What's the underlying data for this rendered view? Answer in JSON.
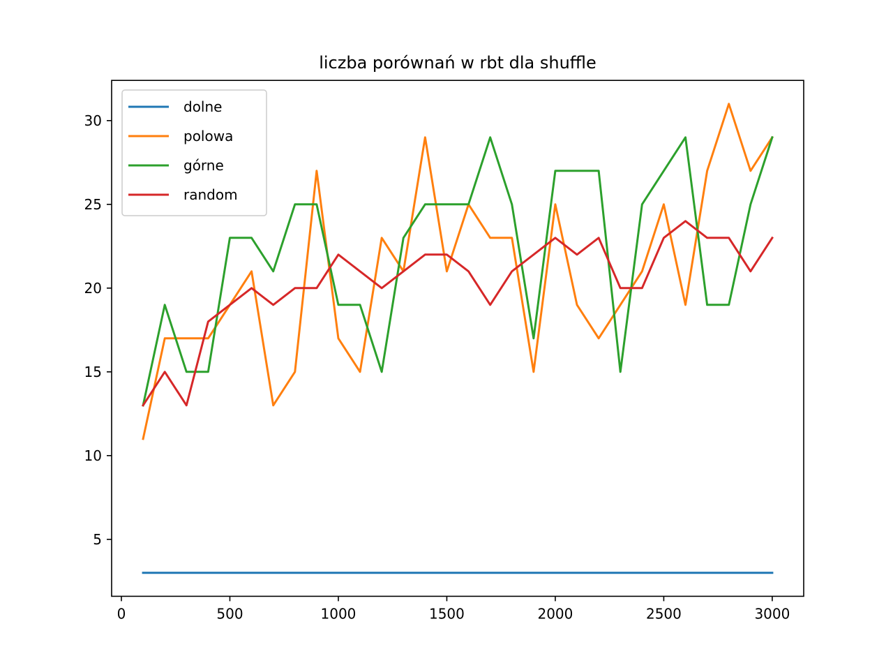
{
  "chart_data": {
    "type": "line",
    "title": "liczba porównań w rbt dla shuffle",
    "xlabel": "",
    "ylabel": "",
    "xlim": [
      -45,
      3145
    ],
    "ylim": [
      1.6,
      32.4
    ],
    "xticks": [
      0,
      500,
      1000,
      1500,
      2000,
      2500,
      3000
    ],
    "xtick_labels": [
      "0",
      "500",
      "1000",
      "1500",
      "2000",
      "2500",
      "3000"
    ],
    "yticks": [
      5,
      10,
      15,
      20,
      25,
      30
    ],
    "ytick_labels": [
      "5",
      "10",
      "15",
      "20",
      "25",
      "30"
    ],
    "grid": false,
    "legend_position": "top-left",
    "x": [
      100,
      200,
      300,
      400,
      500,
      600,
      700,
      800,
      900,
      1000,
      1100,
      1200,
      1300,
      1400,
      1500,
      1600,
      1700,
      1800,
      1900,
      2000,
      2100,
      2200,
      2300,
      2400,
      2500,
      2600,
      2700,
      2800,
      2900,
      3000
    ],
    "series": [
      {
        "name": "dolne",
        "color": "#1f77b4",
        "values": [
          3,
          3,
          3,
          3,
          3,
          3,
          3,
          3,
          3,
          3,
          3,
          3,
          3,
          3,
          3,
          3,
          3,
          3,
          3,
          3,
          3,
          3,
          3,
          3,
          3,
          3,
          3,
          3,
          3,
          3
        ]
      },
      {
        "name": "polowa",
        "color": "#ff7f0e",
        "values": [
          11,
          17,
          17,
          17,
          19,
          21,
          13,
          15,
          27,
          17,
          15,
          23,
          21,
          29,
          21,
          25,
          23,
          23,
          15,
          25,
          19,
          17,
          19,
          21,
          25,
          19,
          27,
          31,
          27,
          29
        ]
      },
      {
        "name": "górne",
        "color": "#2ca02c",
        "values": [
          13,
          19,
          15,
          15,
          23,
          23,
          21,
          25,
          25,
          19,
          19,
          15,
          23,
          25,
          25,
          25,
          29,
          25,
          17,
          27,
          27,
          27,
          15,
          25,
          27,
          29,
          19,
          19,
          25,
          29
        ]
      },
      {
        "name": "random",
        "color": "#d62728",
        "values": [
          13,
          15,
          13,
          18,
          19,
          20,
          19,
          20,
          20,
          22,
          21,
          20,
          21,
          22,
          22,
          21,
          19,
          21,
          22,
          23,
          22,
          23,
          20,
          20,
          23,
          24,
          23,
          23,
          21,
          23
        ]
      }
    ]
  }
}
